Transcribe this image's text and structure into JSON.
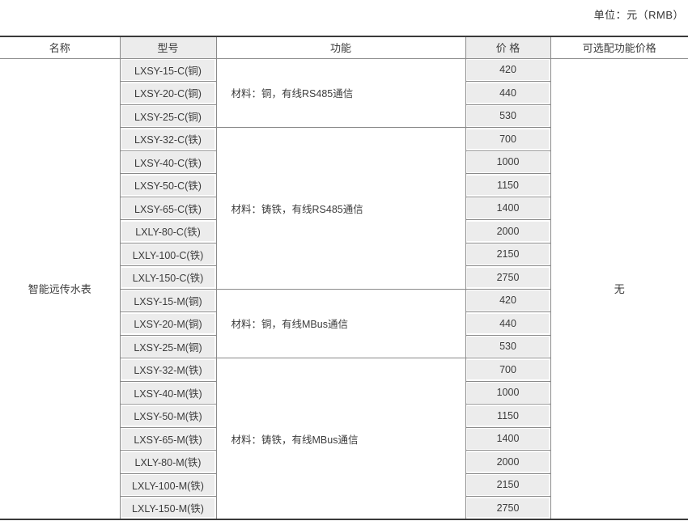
{
  "unit_label": "单位：元（RMB）",
  "table": {
    "headers": {
      "name": "名称",
      "model": "型号",
      "function": "功能",
      "price": "价 格",
      "optional": "可选配功能价格"
    },
    "product_name": "智能远传水表",
    "optional_price": "无",
    "groups": [
      {
        "function": "材料：铜，有线RS485通信",
        "rows": [
          {
            "model": "LXSY-15-C(铜)",
            "price": "420"
          },
          {
            "model": "LXSY-20-C(铜)",
            "price": "440"
          },
          {
            "model": "LXSY-25-C(铜)",
            "price": "530"
          }
        ]
      },
      {
        "function": "材料：铸铁，有线RS485通信",
        "rows": [
          {
            "model": "LXSY-32-C(铁)",
            "price": "700"
          },
          {
            "model": "LXSY-40-C(铁)",
            "price": "1000"
          },
          {
            "model": "LXSY-50-C(铁)",
            "price": "1150"
          },
          {
            "model": "LXSY-65-C(铁)",
            "price": "1400"
          },
          {
            "model": "LXLY-80-C(铁)",
            "price": "2000"
          },
          {
            "model": "LXLY-100-C(铁)",
            "price": "2150"
          },
          {
            "model": "LXLY-150-C(铁)",
            "price": "2750"
          }
        ]
      },
      {
        "function": "材料：铜，有线MBus通信",
        "rows": [
          {
            "model": "LXSY-15-M(铜)",
            "price": "420"
          },
          {
            "model": "LXSY-20-M(铜)",
            "price": "440"
          },
          {
            "model": "LXSY-25-M(铜)",
            "price": "530"
          }
        ]
      },
      {
        "function": "材料：铸铁，有线MBus通信",
        "rows": [
          {
            "model": "LXSY-32-M(铁)",
            "price": "700"
          },
          {
            "model": "LXSY-40-M(铁)",
            "price": "1000"
          },
          {
            "model": "LXSY-50-M(铁)",
            "price": "1150"
          },
          {
            "model": "LXSY-65-M(铁)",
            "price": "1400"
          },
          {
            "model": "LXLY-80-M(铁)",
            "price": "2000"
          },
          {
            "model": "LXLY-100-M(铁)",
            "price": "2150"
          },
          {
            "model": "LXLY-150-M(铁)",
            "price": "2750"
          }
        ]
      }
    ]
  }
}
